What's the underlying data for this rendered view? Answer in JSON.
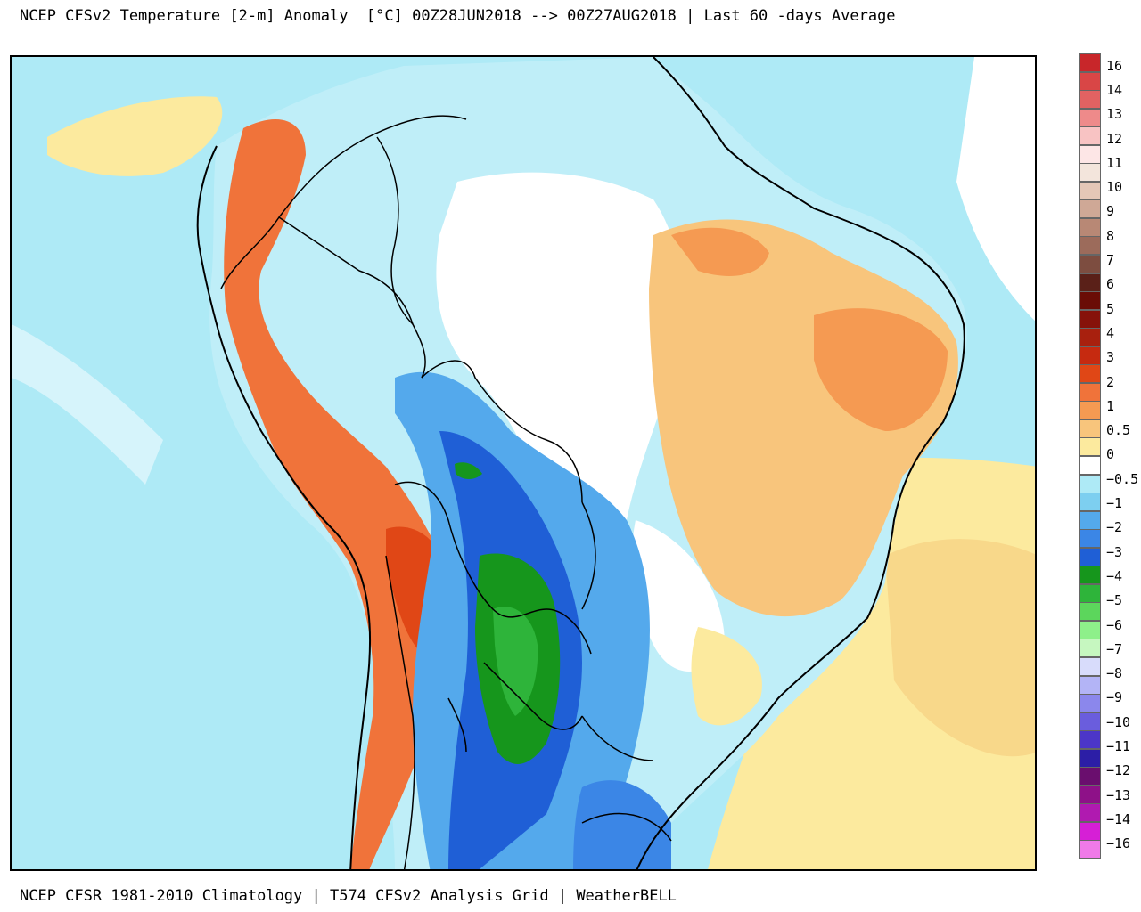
{
  "header": {
    "title": "NCEP CFSv2 Temperature [2-m] Anomaly  [°C] 00Z28JUN2018 --> 00Z27AUG2018 | Last 60 -days Average"
  },
  "footer": {
    "credit": "NCEP CFSR 1981-2010 Climatology | T574 CFSv2 Analysis Grid | WeatherBELL"
  },
  "legend": {
    "colors": [
      "#c8262a",
      "#d94646",
      "#e26262",
      "#ee8a8a",
      "#f8c3c3",
      "#fde6e6",
      "#f3e5dc",
      "#e4c7b7",
      "#cfa896",
      "#b88875",
      "#9c6b5b",
      "#7d4d40",
      "#5a2018",
      "#6a0c06",
      "#86120a",
      "#a8200e",
      "#c62a10",
      "#e04716",
      "#f0733a",
      "#f59a52",
      "#f8c57c",
      "#fcea9e",
      "#ffffff",
      "#aeeaf6",
      "#7dcff0",
      "#54a9ec",
      "#3b86e6",
      "#1f5fd6",
      "#16961c",
      "#2eb43a",
      "#5cd65c",
      "#8ef08a",
      "#c6f7c0",
      "#d8dcfb",
      "#b3b4f6",
      "#8b87ec",
      "#6a5ddd",
      "#4c36c8",
      "#2c1ea6",
      "#6a0e6e",
      "#8e1188",
      "#b01ab0",
      "#d61fd6",
      "#f07ae8"
    ],
    "labels": [
      {
        "text": "16",
        "pos": 0.5
      },
      {
        "text": "14",
        "pos": 1.5
      },
      {
        "text": "13",
        "pos": 2.5
      },
      {
        "text": "12",
        "pos": 3.5
      },
      {
        "text": "11",
        "pos": 4.5
      },
      {
        "text": "10",
        "pos": 5.5
      },
      {
        "text": "9",
        "pos": 6.5
      },
      {
        "text": "8",
        "pos": 7.5
      },
      {
        "text": "7",
        "pos": 8.5
      },
      {
        "text": "6",
        "pos": 9.5
      },
      {
        "text": "5",
        "pos": 10.5
      },
      {
        "text": "4",
        "pos": 11.5
      },
      {
        "text": "3",
        "pos": 12.5
      },
      {
        "text": "2",
        "pos": 13.5
      },
      {
        "text": "1",
        "pos": 14.5
      },
      {
        "text": "0.5",
        "pos": 15.5
      },
      {
        "text": "0",
        "pos": 16.5
      },
      {
        "text": "−0.5",
        "pos": 17.5
      },
      {
        "text": "−1",
        "pos": 18.5
      },
      {
        "text": "−2",
        "pos": 19.5
      },
      {
        "text": "−3",
        "pos": 20.5
      },
      {
        "text": "−4",
        "pos": 21.5
      },
      {
        "text": "−5",
        "pos": 22.5
      },
      {
        "text": "−6",
        "pos": 23.5
      },
      {
        "text": "−7",
        "pos": 24.5
      },
      {
        "text": "−8",
        "pos": 25.5
      },
      {
        "text": "−9",
        "pos": 26.5
      },
      {
        "text": "−10",
        "pos": 27.5
      },
      {
        "text": "−11",
        "pos": 28.5
      },
      {
        "text": "−12",
        "pos": 29.5
      },
      {
        "text": "−13",
        "pos": 30.5
      },
      {
        "text": "−14",
        "pos": 31.5
      },
      {
        "text": "−16",
        "pos": 32.5
      }
    ]
  }
}
